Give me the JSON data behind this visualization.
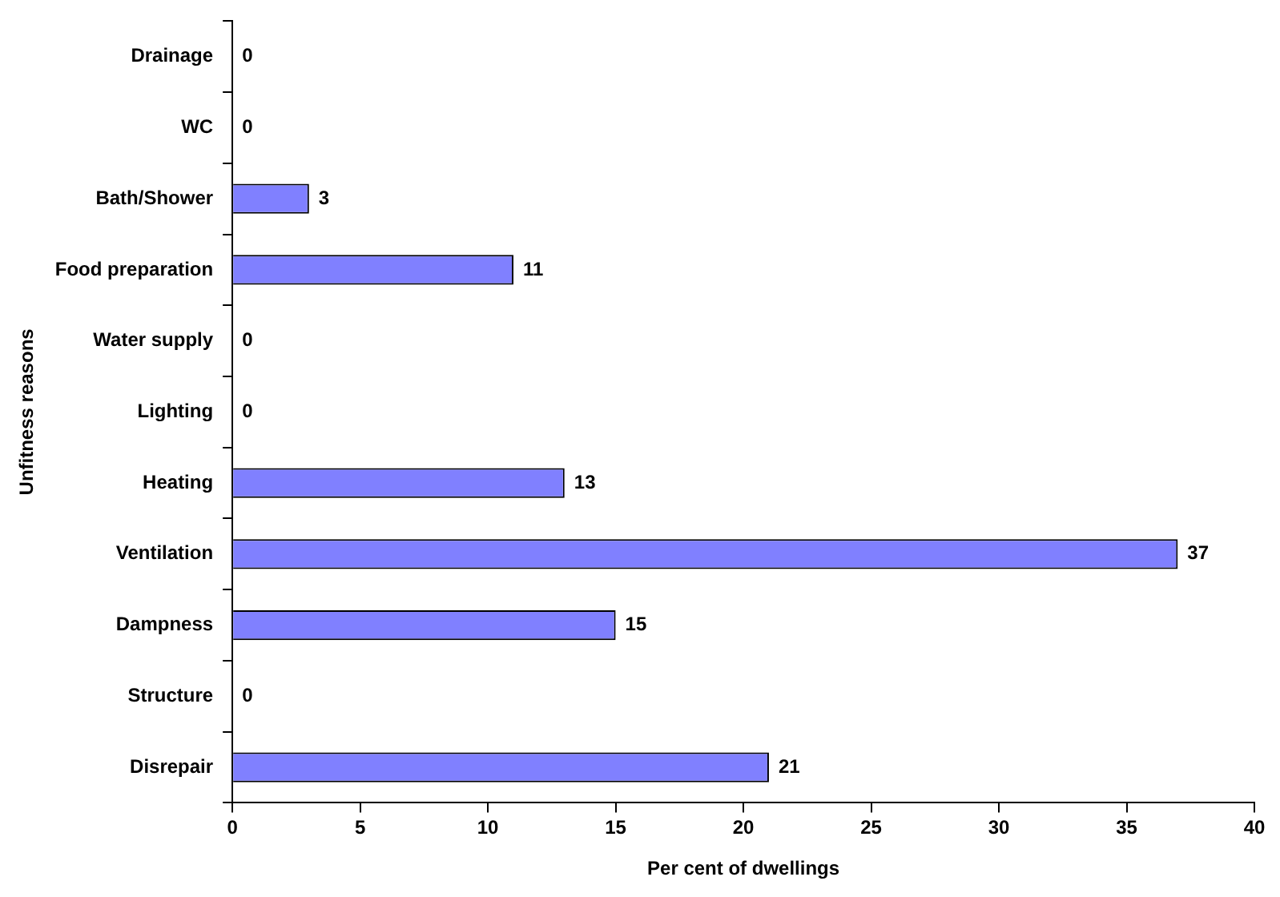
{
  "chart_data": {
    "type": "bar",
    "orientation": "horizontal",
    "xlabel": "Per cent of dwellings",
    "ylabel": "Unfitness reasons",
    "categories": [
      "Drainage",
      "WC",
      "Bath/Shower",
      "Food preparation",
      "Water supply",
      "Lighting",
      "Heating",
      "Ventilation",
      "Dampness",
      "Structure",
      "Disrepair"
    ],
    "values": [
      0,
      0,
      3,
      11,
      0,
      0,
      13,
      37,
      15,
      0,
      21
    ],
    "color": "#8080ff",
    "xlim": [
      0,
      40
    ],
    "xticks": [
      0,
      5,
      10,
      15,
      20,
      25,
      30,
      35,
      40
    ],
    "grid": false,
    "legend": false,
    "data_labels": true
  }
}
